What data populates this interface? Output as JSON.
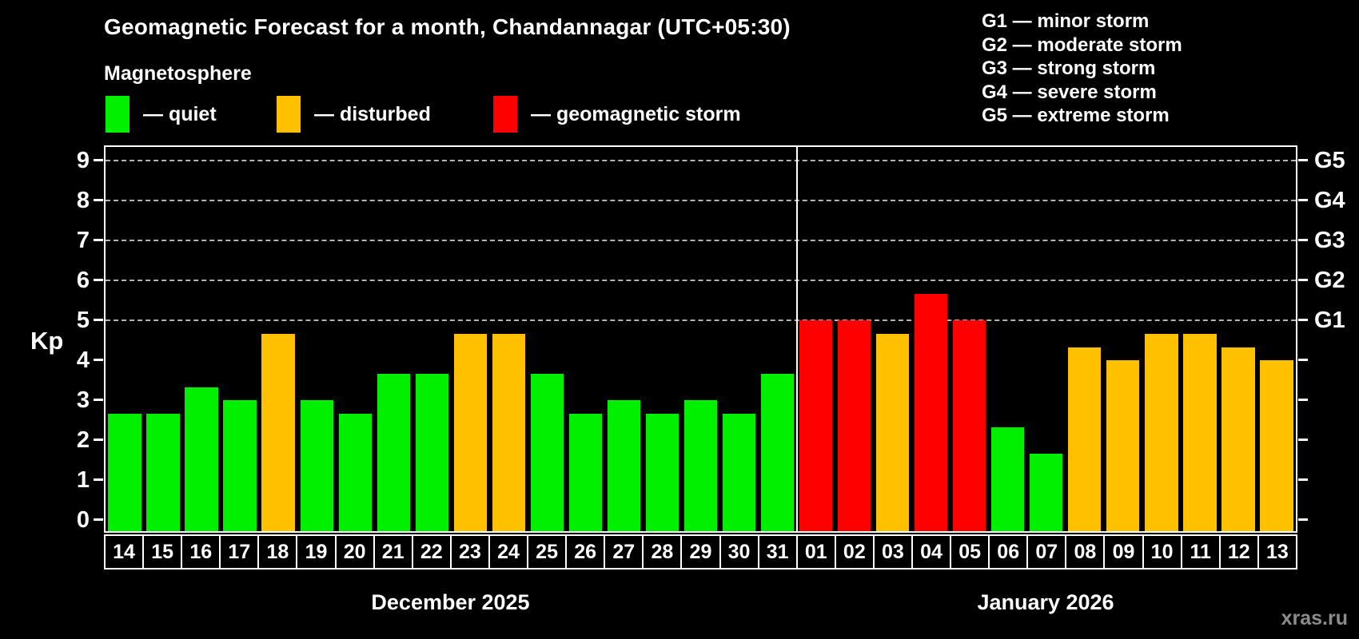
{
  "chart_data": {
    "type": "bar",
    "title": "Geomagnetic Forecast for a month, Chandannagar (UTC+05:30)",
    "subtitle": "Magnetosphere",
    "ylabel": "Kp",
    "ylim": [
      0,
      9.6
    ],
    "yticks": [
      0,
      1,
      2,
      3,
      4,
      5,
      6,
      7,
      8,
      9
    ],
    "gridline_levels": [
      5,
      6,
      7,
      8,
      9
    ],
    "grid_on": true,
    "legend_position": "top-left",
    "right_axis": [
      {
        "level": 5,
        "label": "G1"
      },
      {
        "level": 6,
        "label": "G2"
      },
      {
        "level": 7,
        "label": "G3"
      },
      {
        "level": 8,
        "label": "G4"
      },
      {
        "level": 9,
        "label": "G5"
      }
    ],
    "legend": [
      {
        "key": "quiet",
        "label": "— quiet",
        "color": "#00f000"
      },
      {
        "key": "disturbed",
        "label": "— disturbed",
        "color": "#ffc000"
      },
      {
        "key": "storm",
        "label": "— geomagnetic storm",
        "color": "#ff0000"
      }
    ],
    "g_legend": [
      "G1 — minor storm",
      "G2 — moderate storm",
      "G3 — strong storm",
      "G4 — severe storm",
      "G5 — extreme storm"
    ],
    "months": [
      {
        "label": "December 2025",
        "days": 18
      },
      {
        "label": "January 2026",
        "days": 13
      }
    ],
    "bars": [
      {
        "day": "14",
        "month": "December 2025",
        "value": 2.67,
        "status": "quiet"
      },
      {
        "day": "15",
        "month": "December 2025",
        "value": 2.67,
        "status": "quiet"
      },
      {
        "day": "16",
        "month": "December 2025",
        "value": 3.33,
        "status": "quiet"
      },
      {
        "day": "17",
        "month": "December 2025",
        "value": 3.0,
        "status": "quiet"
      },
      {
        "day": "18",
        "month": "December 2025",
        "value": 4.67,
        "status": "disturbed"
      },
      {
        "day": "19",
        "month": "December 2025",
        "value": 3.0,
        "status": "quiet"
      },
      {
        "day": "20",
        "month": "December 2025",
        "value": 2.67,
        "status": "quiet"
      },
      {
        "day": "21",
        "month": "December 2025",
        "value": 3.67,
        "status": "quiet"
      },
      {
        "day": "22",
        "month": "December 2025",
        "value": 3.67,
        "status": "quiet"
      },
      {
        "day": "23",
        "month": "December 2025",
        "value": 4.67,
        "status": "disturbed"
      },
      {
        "day": "24",
        "month": "December 2025",
        "value": 4.67,
        "status": "disturbed"
      },
      {
        "day": "25",
        "month": "December 2025",
        "value": 3.67,
        "status": "quiet"
      },
      {
        "day": "26",
        "month": "December 2025",
        "value": 2.67,
        "status": "quiet"
      },
      {
        "day": "27",
        "month": "December 2025",
        "value": 3.0,
        "status": "quiet"
      },
      {
        "day": "28",
        "month": "December 2025",
        "value": 2.67,
        "status": "quiet"
      },
      {
        "day": "29",
        "month": "December 2025",
        "value": 3.0,
        "status": "quiet"
      },
      {
        "day": "30",
        "month": "December 2025",
        "value": 2.67,
        "status": "quiet"
      },
      {
        "day": "31",
        "month": "December 2025",
        "value": 3.67,
        "status": "quiet"
      },
      {
        "day": "01",
        "month": "January 2026",
        "value": 5.0,
        "status": "storm"
      },
      {
        "day": "02",
        "month": "January 2026",
        "value": 5.0,
        "status": "storm"
      },
      {
        "day": "03",
        "month": "January 2026",
        "value": 4.67,
        "status": "disturbed"
      },
      {
        "day": "04",
        "month": "January 2026",
        "value": 5.67,
        "status": "storm"
      },
      {
        "day": "05",
        "month": "January 2026",
        "value": 5.0,
        "status": "storm"
      },
      {
        "day": "06",
        "month": "January 2026",
        "value": 2.33,
        "status": "quiet"
      },
      {
        "day": "07",
        "month": "January 2026",
        "value": 1.67,
        "status": "quiet"
      },
      {
        "day": "08",
        "month": "January 2026",
        "value": 4.33,
        "status": "disturbed"
      },
      {
        "day": "09",
        "month": "January 2026",
        "value": 4.0,
        "status": "disturbed"
      },
      {
        "day": "10",
        "month": "January 2026",
        "value": 4.67,
        "status": "disturbed"
      },
      {
        "day": "11",
        "month": "January 2026",
        "value": 4.67,
        "status": "disturbed"
      },
      {
        "day": "12",
        "month": "January 2026",
        "value": 4.33,
        "status": "disturbed"
      },
      {
        "day": "13",
        "month": "January 2026",
        "value": 4.0,
        "status": "disturbed"
      }
    ],
    "watermark": "xras.ru",
    "colors": {
      "background": "#000000",
      "text": "#ffffff",
      "grid": "#b4b4b4",
      "axis": "#ffffff",
      "watermark": "#8c8c8c"
    }
  }
}
